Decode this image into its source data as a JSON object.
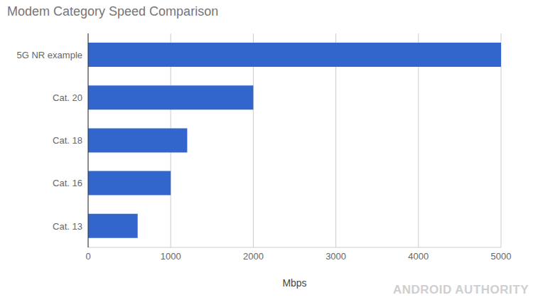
{
  "chart_data": {
    "type": "bar",
    "title": "Modem Category Speed Comparison",
    "orientation": "horizontal",
    "categories": [
      "5G NR example",
      "Cat. 20",
      "Cat. 18",
      "Cat. 16",
      "Cat. 13"
    ],
    "values": [
      5000,
      2000,
      1200,
      1000,
      600
    ],
    "color": "#3366cc",
    "xlabel": "Mbps",
    "xlim": [
      0,
      5000
    ],
    "xticks": [
      0,
      1000,
      2000,
      3000,
      4000,
      5000
    ],
    "grid": true,
    "annotation": "ANDROID AUTHORITY"
  }
}
